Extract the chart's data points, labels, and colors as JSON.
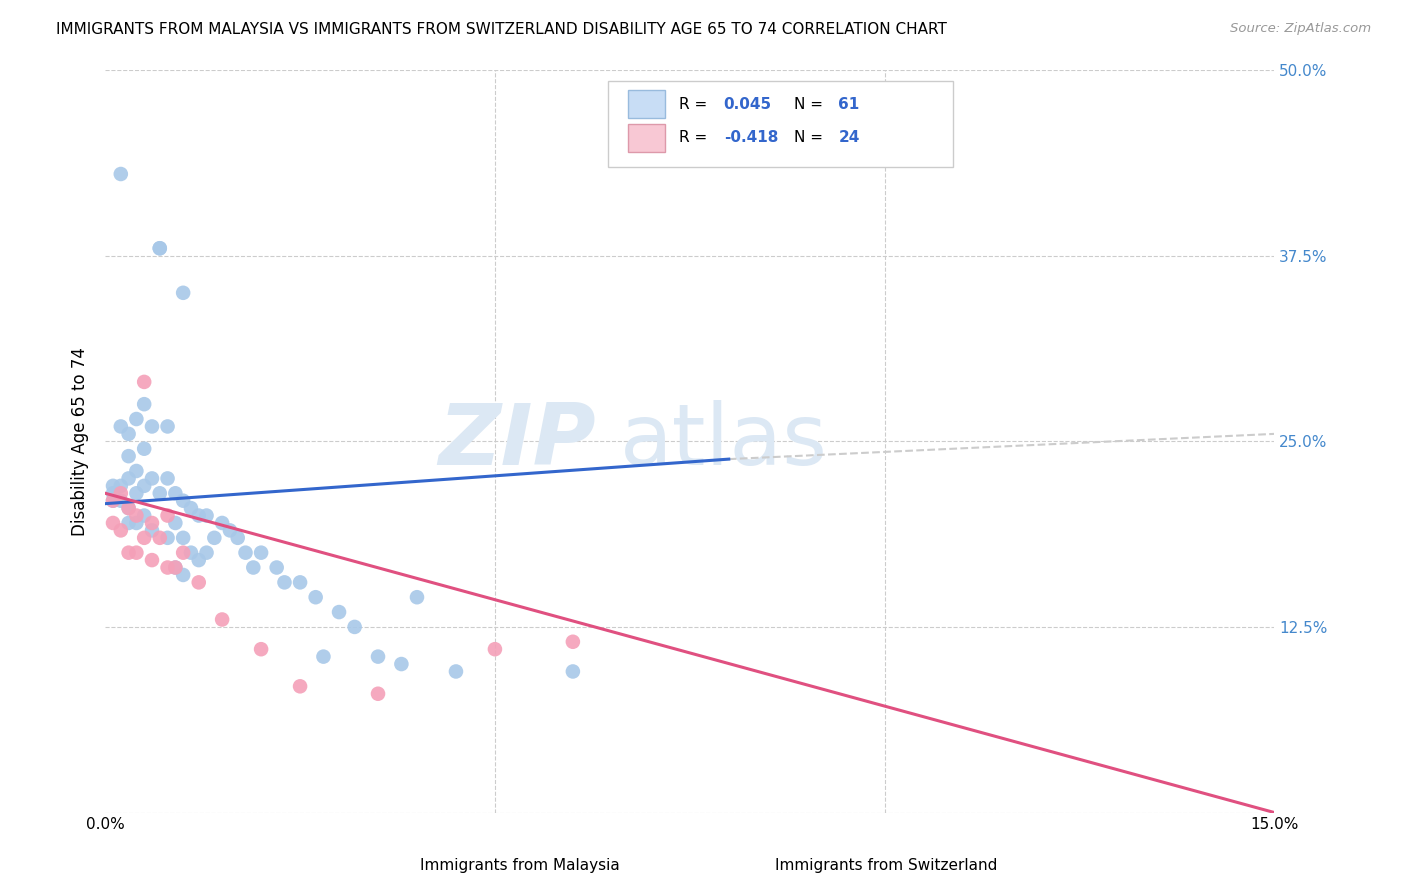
{
  "title": "IMMIGRANTS FROM MALAYSIA VS IMMIGRANTS FROM SWITZERLAND DISABILITY AGE 65 TO 74 CORRELATION CHART",
  "source": "Source: ZipAtlas.com",
  "xlabel_malaysia": "Immigrants from Malaysia",
  "xlabel_switzerland": "Immigrants from Switzerland",
  "ylabel": "Disability Age 65 to 74",
  "xmin": 0.0,
  "xmax": 0.15,
  "ymin": 0.0,
  "ymax": 0.5,
  "ytick_labels": [
    "",
    "12.5%",
    "25.0%",
    "37.5%",
    "50.0%"
  ],
  "ytick_values": [
    0.0,
    0.125,
    0.25,
    0.375,
    0.5
  ],
  "r_malaysia": "0.045",
  "n_malaysia": "61",
  "r_switzerland": "-0.418",
  "n_switzerland": "24",
  "color_malaysia": "#a8c8e8",
  "color_switzerland": "#f4a0b8",
  "line_color_malaysia": "#3366cc",
  "line_color_switzerland": "#e05080",
  "legend_fill_malaysia": "#c8ddf5",
  "legend_fill_switzerland": "#f8c8d4",
  "legend_edge_malaysia": "#99bbdd",
  "legend_edge_switzerland": "#dd99aa",
  "background_color": "#ffffff",
  "grid_color": "#cccccc",
  "watermark_color": "#dce8f4",
  "malaysia_line_x0": 0.0,
  "malaysia_line_y0": 0.208,
  "malaysia_line_x1": 0.08,
  "malaysia_line_y1": 0.238,
  "switzerland_line_x0": 0.0,
  "switzerland_line_y0": 0.215,
  "switzerland_line_x1": 0.15,
  "switzerland_line_y1": 0.0,
  "dashed_line_x0": 0.08,
  "dashed_line_y0": 0.238,
  "dashed_line_x1": 0.15,
  "dashed_line_y1": 0.255,
  "malaysia_x": [
    0.001,
    0.001,
    0.001,
    0.002,
    0.002,
    0.002,
    0.002,
    0.003,
    0.003,
    0.003,
    0.003,
    0.003,
    0.004,
    0.004,
    0.004,
    0.004,
    0.005,
    0.005,
    0.005,
    0.005,
    0.006,
    0.006,
    0.006,
    0.007,
    0.007,
    0.007,
    0.008,
    0.008,
    0.008,
    0.009,
    0.009,
    0.009,
    0.01,
    0.01,
    0.01,
    0.011,
    0.011,
    0.012,
    0.012,
    0.013,
    0.013,
    0.014,
    0.015,
    0.016,
    0.017,
    0.018,
    0.019,
    0.02,
    0.022,
    0.023,
    0.025,
    0.027,
    0.028,
    0.03,
    0.032,
    0.035,
    0.038,
    0.04,
    0.045,
    0.06,
    0.01
  ],
  "malaysia_y": [
    0.22,
    0.215,
    0.21,
    0.43,
    0.26,
    0.22,
    0.21,
    0.255,
    0.24,
    0.225,
    0.205,
    0.195,
    0.265,
    0.23,
    0.215,
    0.195,
    0.275,
    0.245,
    0.22,
    0.2,
    0.26,
    0.225,
    0.19,
    0.38,
    0.38,
    0.215,
    0.26,
    0.225,
    0.185,
    0.215,
    0.195,
    0.165,
    0.21,
    0.185,
    0.16,
    0.205,
    0.175,
    0.2,
    0.17,
    0.2,
    0.175,
    0.185,
    0.195,
    0.19,
    0.185,
    0.175,
    0.165,
    0.175,
    0.165,
    0.155,
    0.155,
    0.145,
    0.105,
    0.135,
    0.125,
    0.105,
    0.1,
    0.145,
    0.095,
    0.095,
    0.35
  ],
  "switzerland_x": [
    0.001,
    0.001,
    0.002,
    0.002,
    0.003,
    0.003,
    0.004,
    0.004,
    0.005,
    0.005,
    0.006,
    0.006,
    0.007,
    0.008,
    0.008,
    0.009,
    0.01,
    0.012,
    0.015,
    0.02,
    0.025,
    0.035,
    0.05,
    0.06
  ],
  "switzerland_y": [
    0.21,
    0.195,
    0.215,
    0.19,
    0.205,
    0.175,
    0.2,
    0.175,
    0.29,
    0.185,
    0.195,
    0.17,
    0.185,
    0.2,
    0.165,
    0.165,
    0.175,
    0.155,
    0.13,
    0.11,
    0.085,
    0.08,
    0.11,
    0.115
  ]
}
